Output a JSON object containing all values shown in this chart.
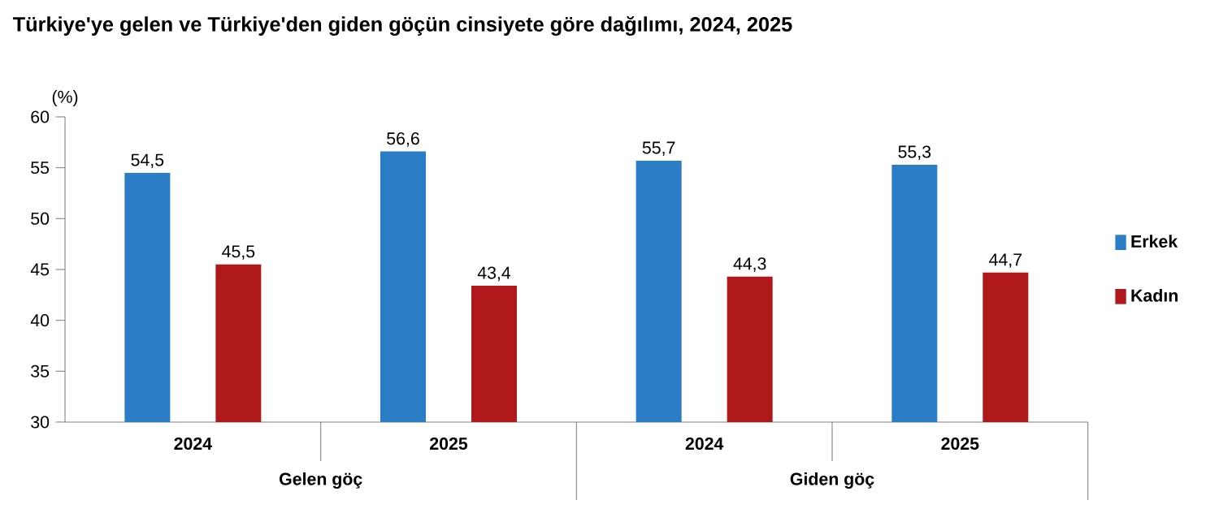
{
  "chart_data": {
    "type": "bar",
    "title": "Türkiye'ye gelen ve Türkiye'den giden göçün cinsiyete göre dağılımı, 2024, 2025",
    "ylabel": "(%)",
    "categories": [
      "2024",
      "2025",
      "2024",
      "2025"
    ],
    "annotations": [
      "Gelen göç",
      "Giden göç"
    ],
    "series": [
      {
        "name": "Erkek",
        "color": "#2b7dc6",
        "values": [
          54.5,
          56.6,
          55.7,
          55.3
        ],
        "value_labels": [
          "54,5",
          "56,6",
          "55,7",
          "55,3"
        ]
      },
      {
        "name": "Kadın",
        "color": "#b0191c",
        "values": [
          45.5,
          43.4,
          44.3,
          44.7
        ],
        "value_labels": [
          "45,5",
          "43,4",
          "44,3",
          "44,7"
        ]
      }
    ],
    "ylim": [
      30,
      60
    ],
    "yticks": [
      30,
      35,
      40,
      45,
      50,
      55,
      60
    ],
    "legend": "right",
    "grid": false
  }
}
